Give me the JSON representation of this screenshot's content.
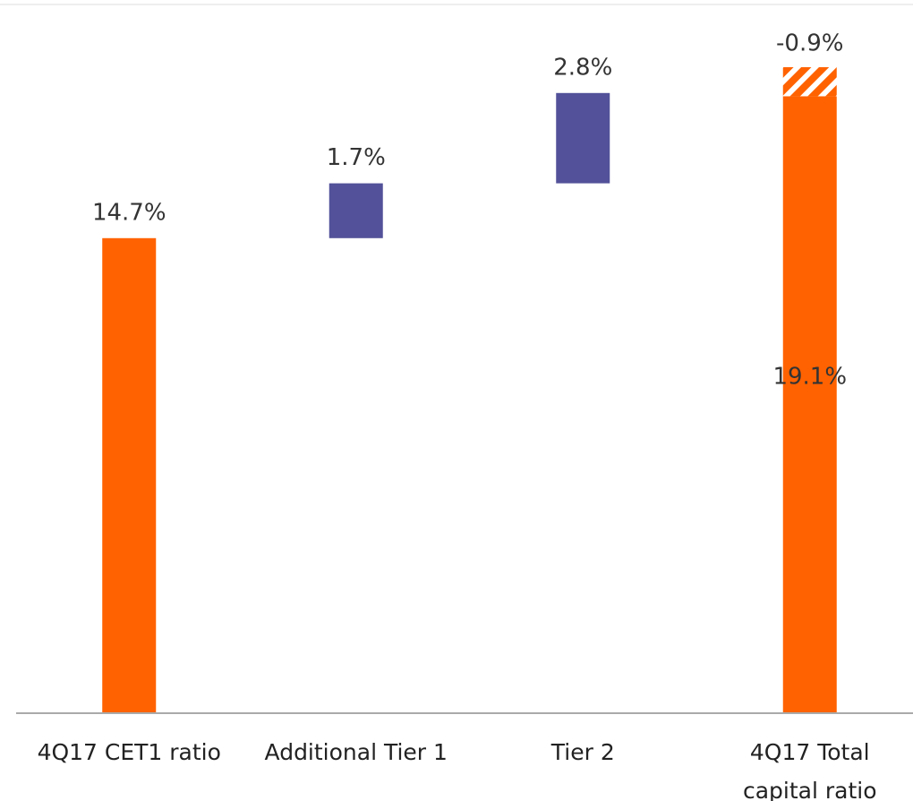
{
  "chart_data": {
    "type": "waterfall",
    "categories": [
      "4Q17 CET1 ratio",
      "Additional Tier 1",
      "Tier 2",
      "4Q17 Total capital ratio"
    ],
    "values": [
      14.7,
      1.7,
      2.8,
      19.1
    ],
    "value_labels": [
      "14.7%",
      "1.7%",
      "2.8%",
      "19.1%"
    ],
    "colors": [
      "#ff6200",
      "#525199",
      "#525199",
      "#ff6200"
    ],
    "adjustment": {
      "value": -0.9,
      "label": "-0.9%",
      "color": "#ff6200"
    },
    "ylim": [
      0,
      22
    ]
  }
}
